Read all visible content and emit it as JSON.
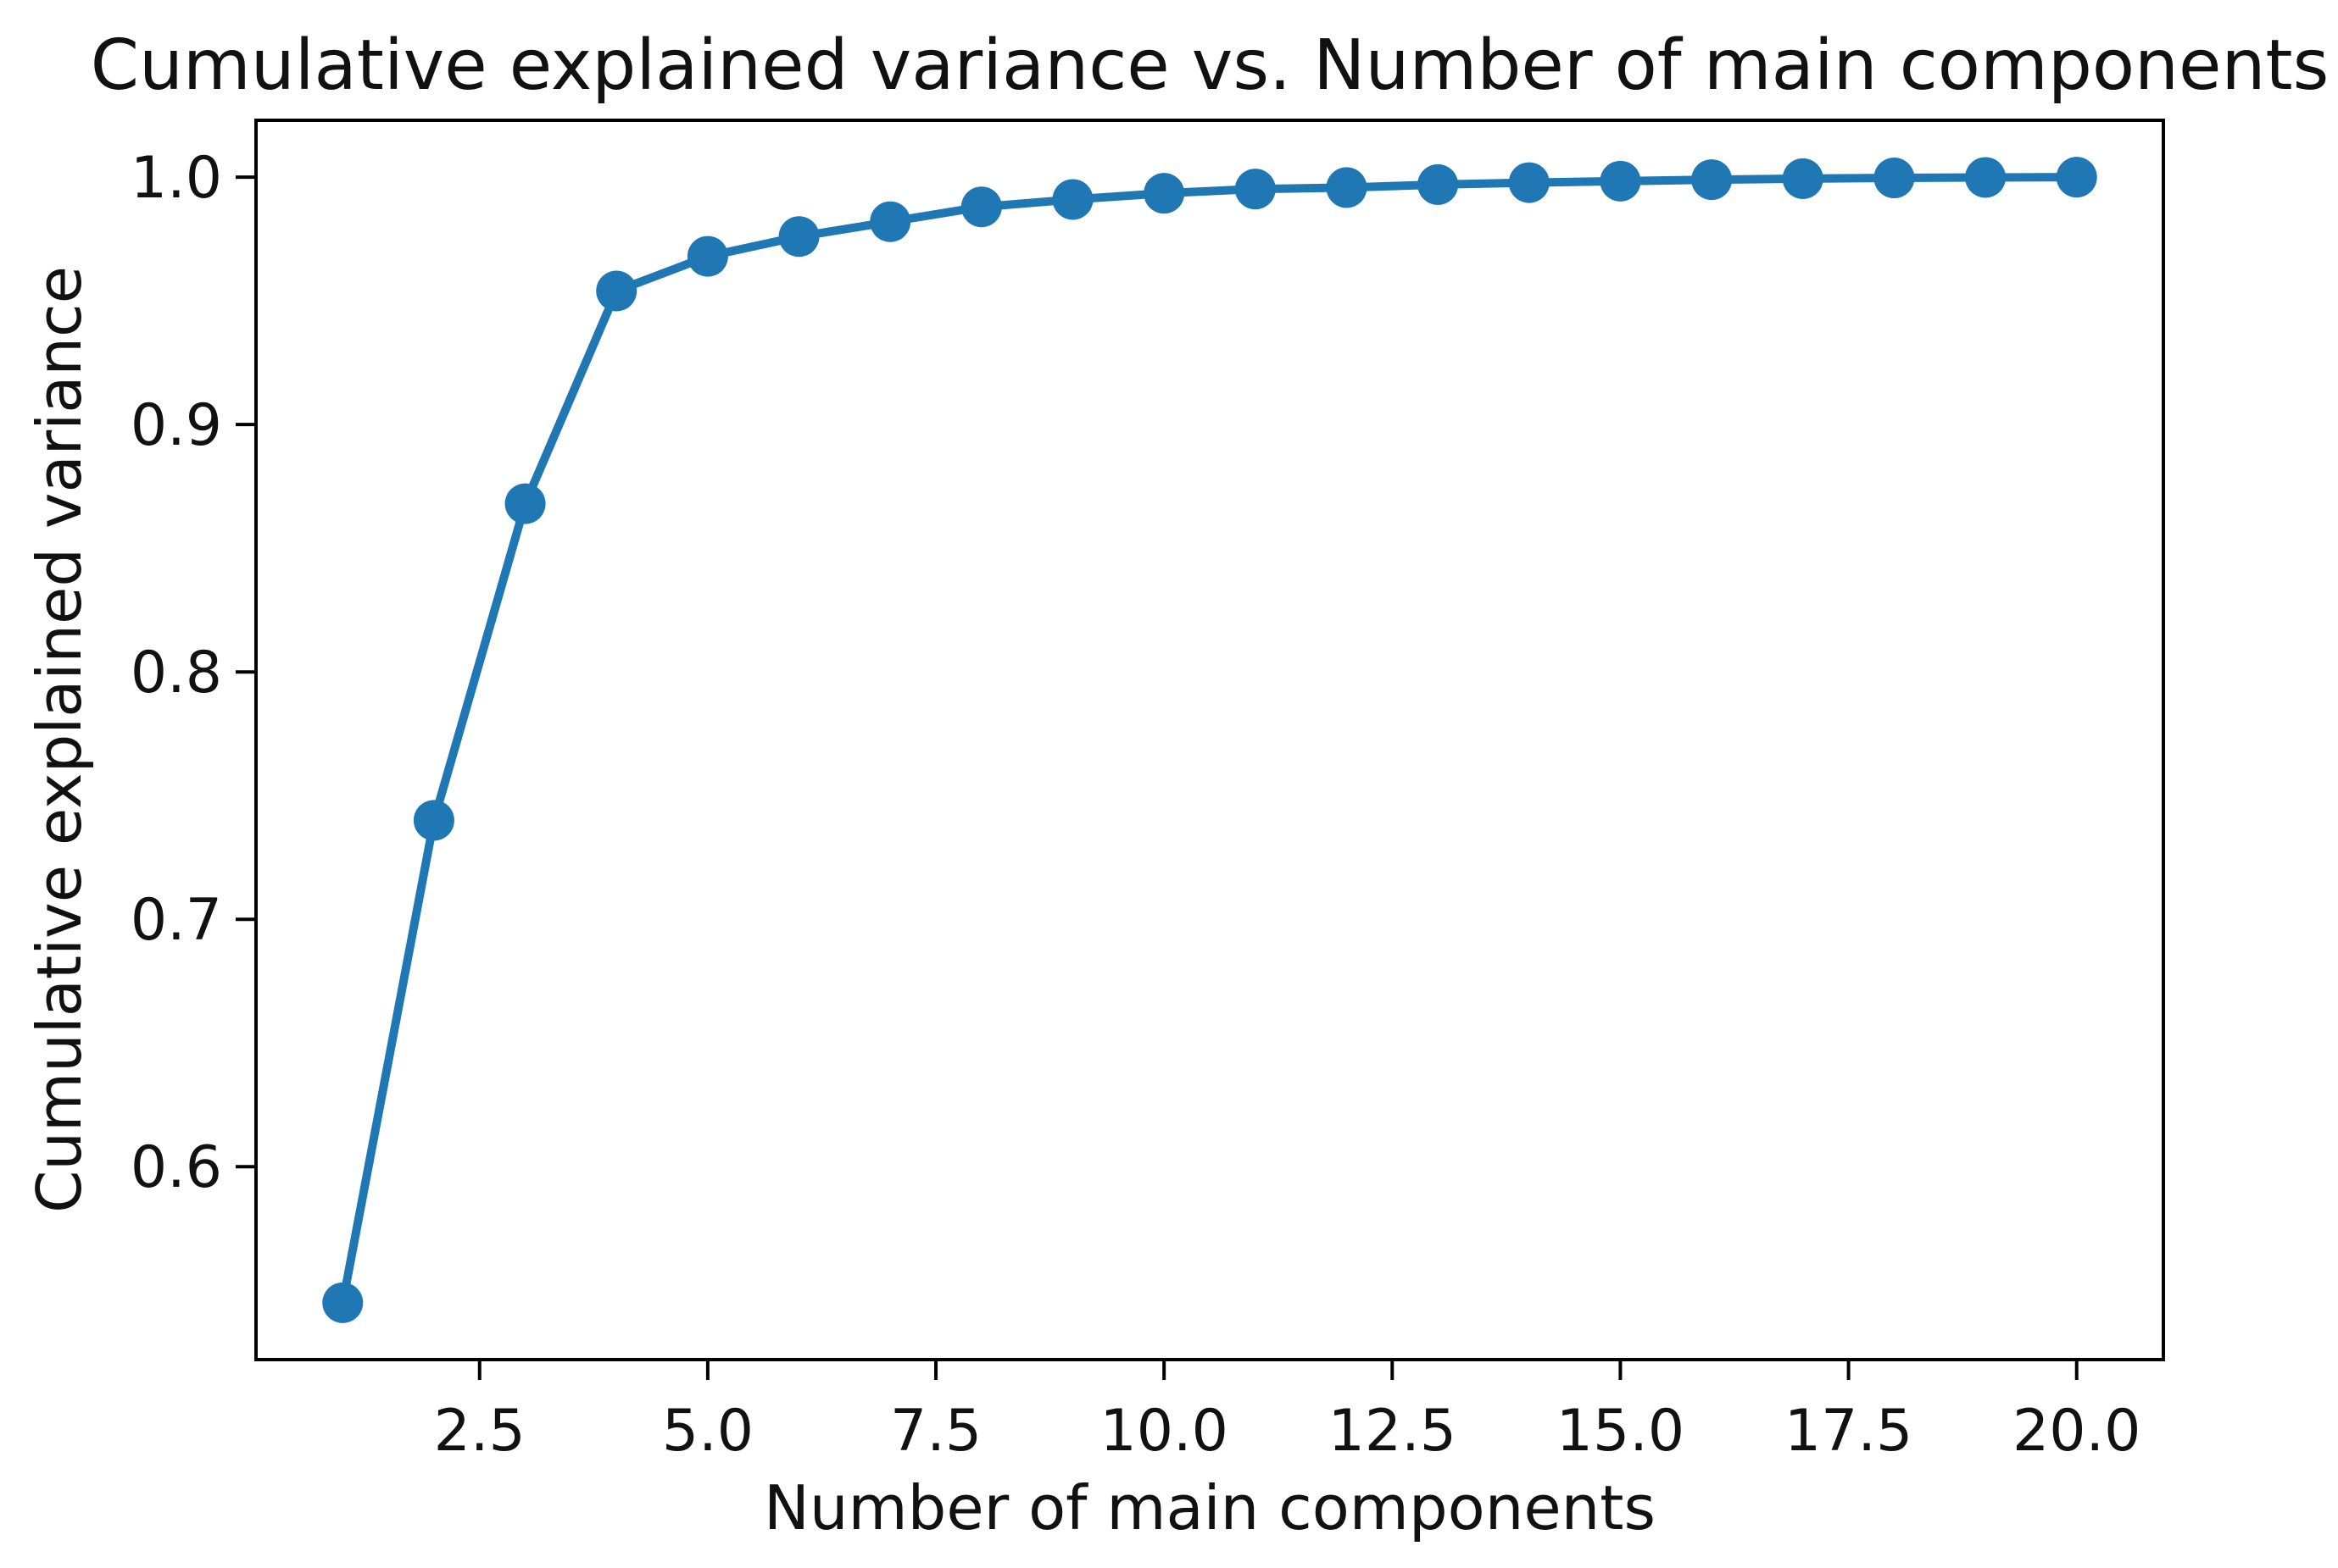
{
  "figure": {
    "title": "Cumulative explained variance vs. Number of main components",
    "background_color": "#ffffff",
    "axis_color": "#000000",
    "text_color": "#111111"
  },
  "chart_data": {
    "type": "line",
    "title": "Cumulative explained variance vs. Number of main components",
    "xlabel": "Number of main components",
    "ylabel": "Cumulative explained variance",
    "x": [
      1,
      2,
      3,
      4,
      5,
      6,
      7,
      8,
      9,
      10,
      11,
      12,
      13,
      14,
      15,
      16,
      17,
      18,
      19,
      20
    ],
    "y": [
      0.545,
      0.74,
      0.868,
      0.954,
      0.968,
      0.976,
      0.982,
      0.988,
      0.991,
      0.9935,
      0.9952,
      0.9958,
      0.997,
      0.9978,
      0.9984,
      0.999,
      0.9994,
      0.9997,
      0.9999,
      1.0
    ],
    "xlim": [
      0.05,
      20.95
    ],
    "ylim": [
      0.522,
      1.023
    ],
    "x_ticks": [
      2.5,
      5.0,
      7.5,
      10.0,
      12.5,
      15.0,
      17.5,
      20.0
    ],
    "x_tick_labels": [
      "2.5",
      "5.0",
      "7.5",
      "10.0",
      "12.5",
      "15.0",
      "17.5",
      "20.0"
    ],
    "y_ticks": [
      0.6,
      0.7,
      0.8,
      0.9,
      1.0
    ],
    "y_tick_labels": [
      "0.6",
      "0.7",
      "0.8",
      "0.9",
      "1.0"
    ],
    "line_color": "#1f77b4",
    "marker": "circle",
    "grid": false,
    "legend_position": "none"
  }
}
